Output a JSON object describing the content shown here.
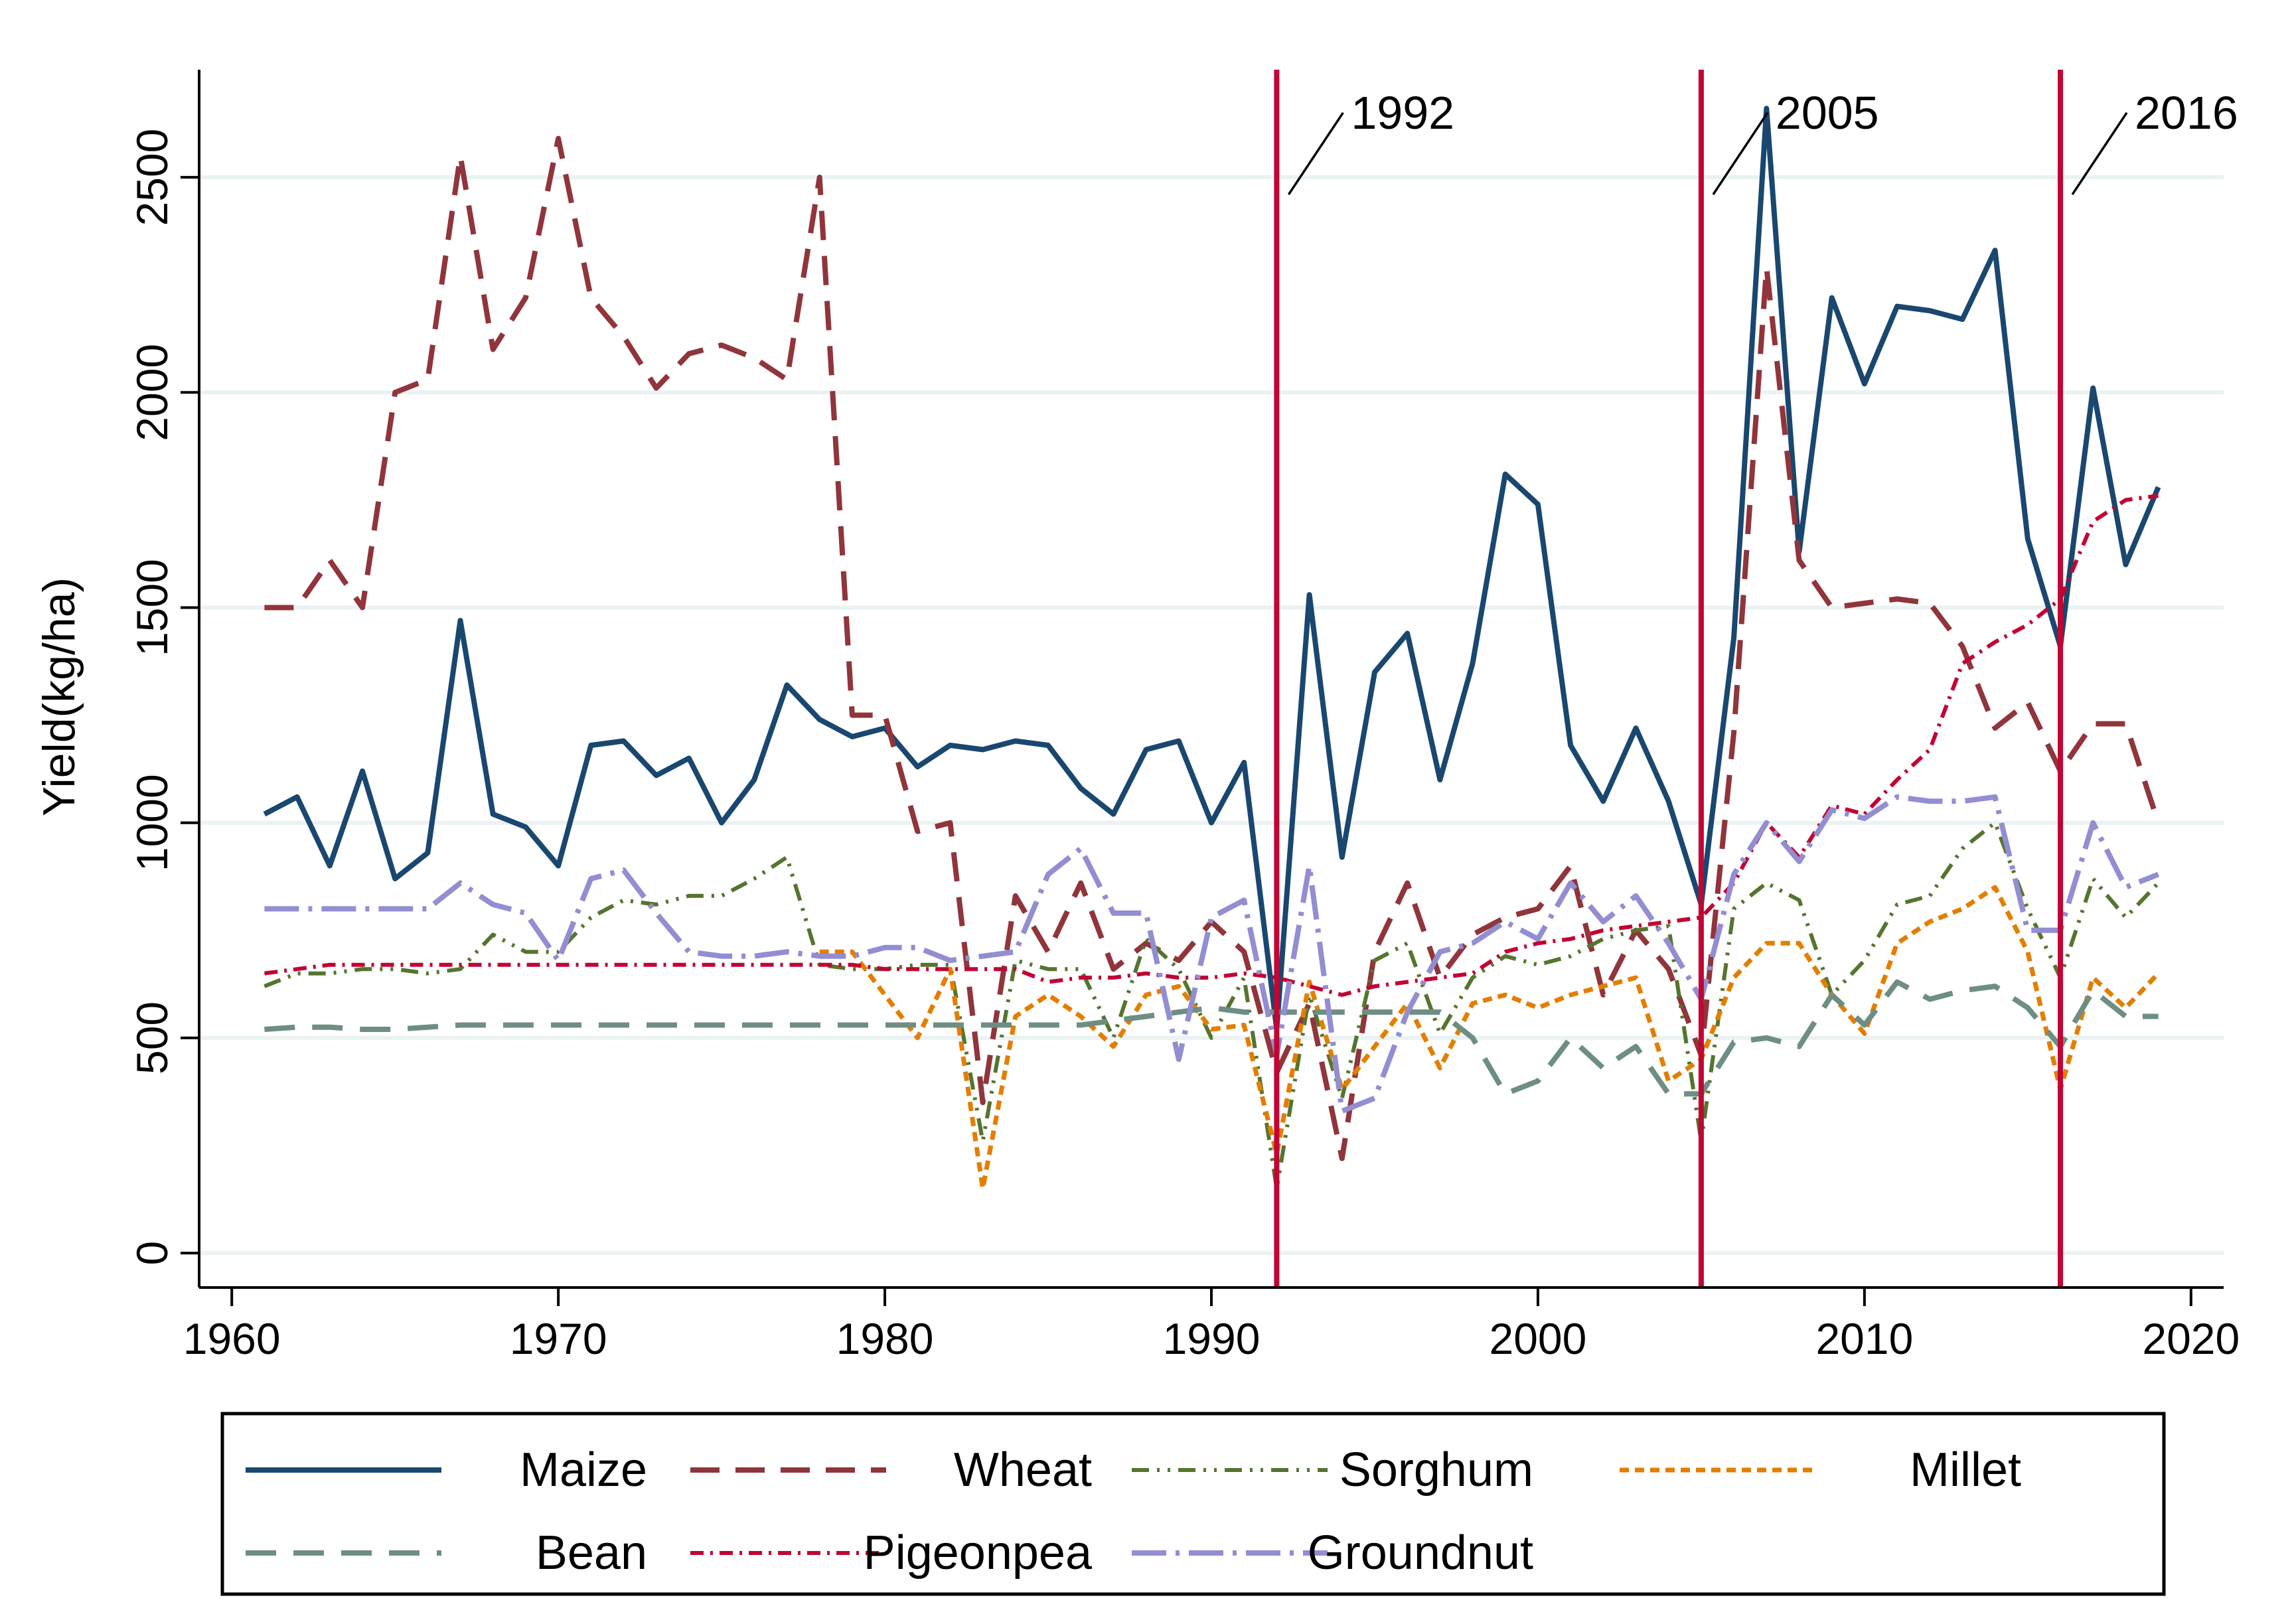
{
  "chart_data": {
    "type": "line",
    "title": "",
    "xlabel": "",
    "ylabel": "Yield(kg/ha)",
    "xlim": [
      1959,
      2021
    ],
    "ylim": [
      -80,
      2750
    ],
    "xticks": [
      1960,
      1970,
      1980,
      1990,
      2000,
      2010,
      2020
    ],
    "yticks": [
      0,
      500,
      1000,
      1500,
      2000,
      2500
    ],
    "grid": true,
    "legend_position": "bottom",
    "x": [
      1961,
      1962,
      1963,
      1964,
      1965,
      1966,
      1967,
      1968,
      1969,
      1970,
      1971,
      1972,
      1973,
      1974,
      1975,
      1976,
      1977,
      1978,
      1979,
      1980,
      1981,
      1982,
      1983,
      1984,
      1985,
      1986,
      1987,
      1988,
      1989,
      1990,
      1991,
      1992,
      1993,
      1994,
      1995,
      1996,
      1997,
      1998,
      1999,
      2000,
      2001,
      2002,
      2003,
      2004,
      2005,
      2006,
      2007,
      2008,
      2009,
      2010,
      2011,
      2012,
      2013,
      2014,
      2015,
      2016,
      2017,
      2018,
      2019
    ],
    "series": [
      {
        "name": "Maize",
        "color": "#1a476f",
        "dash": "",
        "width": 8,
        "values": [
          1020,
          1060,
          900,
          1120,
          870,
          930,
          1470,
          1020,
          990,
          900,
          1180,
          1190,
          1110,
          1150,
          1000,
          1100,
          1320,
          1240,
          1200,
          1220,
          1130,
          1180,
          1170,
          1190,
          1180,
          1080,
          1020,
          1170,
          1190,
          1000,
          1140,
          520,
          1530,
          920,
          1350,
          1440,
          1100,
          1370,
          1810,
          1740,
          1180,
          1050,
          1220,
          1050,
          810,
          1430,
          2660,
          1630,
          2220,
          2020,
          2200,
          2190,
          2170,
          2330,
          1660,
          1410,
          2010,
          1600,
          1780
        ]
      },
      {
        "name": "Wheat",
        "color": "#90353b",
        "dash": "44,24",
        "width": 8,
        "values": [
          1500,
          1500,
          1610,
          1500,
          2000,
          2030,
          2550,
          2100,
          2220,
          2590,
          2220,
          2130,
          2010,
          2090,
          2110,
          2080,
          2030,
          2500,
          1250,
          1250,
          980,
          1000,
          350,
          830,
          700,
          860,
          660,
          720,
          680,
          770,
          700,
          420,
          580,
          220,
          700,
          860,
          640,
          740,
          780,
          800,
          900,
          600,
          750,
          660,
          460,
          1210,
          2290,
          1610,
          1500,
          1510,
          1520,
          1510,
          1410,
          1220,
          1280,
          1120,
          1230,
          1230,
          1000
        ]
      },
      {
        "name": "Sorghum",
        "color": "#55752f",
        "dash": "26,12,4,12,4,12",
        "width": 6,
        "values": [
          620,
          650,
          650,
          660,
          660,
          650,
          660,
          740,
          700,
          700,
          780,
          820,
          810,
          830,
          830,
          870,
          920,
          670,
          660,
          660,
          670,
          670,
          260,
          680,
          660,
          660,
          500,
          730,
          660,
          500,
          640,
          150,
          600,
          360,
          680,
          720,
          510,
          640,
          690,
          670,
          690,
          730,
          750,
          760,
          260,
          800,
          860,
          820,
          600,
          680,
          810,
          830,
          940,
          1000,
          800,
          640,
          870,
          780,
          860
        ]
      },
      {
        "name": "Millet",
        "color": "#e37e00",
        "dash": "14,9",
        "width": 7,
        "values": [
          null,
          null,
          null,
          null,
          null,
          null,
          null,
          null,
          null,
          null,
          null,
          null,
          null,
          null,
          null,
          null,
          null,
          700,
          700,
          600,
          500,
          660,
          150,
          550,
          600,
          550,
          480,
          600,
          620,
          520,
          530,
          230,
          630,
          380,
          480,
          580,
          430,
          580,
          600,
          570,
          600,
          620,
          640,
          400,
          450,
          640,
          720,
          720,
          600,
          510,
          720,
          770,
          800,
          850,
          700,
          380,
          640,
          570,
          650
        ]
      },
      {
        "name": "Bean",
        "color": "#6e8e84",
        "dash": "46,26",
        "width": 8,
        "values": [
          520,
          525,
          525,
          520,
          520,
          525,
          530,
          530,
          530,
          530,
          530,
          530,
          530,
          530,
          530,
          530,
          530,
          530,
          530,
          530,
          530,
          530,
          530,
          530,
          530,
          530,
          540,
          550,
          560,
          570,
          560,
          560,
          560,
          560,
          560,
          560,
          560,
          500,
          370,
          400,
          500,
          430,
          480,
          370,
          370,
          490,
          500,
          480,
          600,
          530,
          630,
          590,
          610,
          620,
          570,
          480,
          610,
          550,
          550
        ]
      },
      {
        "name": "Pigeonpea",
        "color": "#c10534",
        "dash": "20,10,4,10",
        "width": 6,
        "values": [
          650,
          660,
          670,
          670,
          670,
          670,
          670,
          670,
          670,
          670,
          670,
          670,
          670,
          670,
          670,
          670,
          670,
          670,
          670,
          660,
          660,
          660,
          660,
          660,
          630,
          640,
          640,
          650,
          640,
          640,
          650,
          640,
          620,
          600,
          620,
          630,
          640,
          650,
          700,
          720,
          730,
          750,
          760,
          770,
          780,
          860,
          1000,
          920,
          1040,
          1020,
          1100,
          1170,
          1370,
          1420,
          1460,
          1520,
          1700,
          1750,
          1760
        ]
      },
      {
        "name": "Groundnut",
        "color": "#938dd2",
        "dash": "52,14,6,14",
        "width": 8,
        "values": [
          800,
          800,
          800,
          800,
          800,
          800,
          860,
          810,
          790,
          680,
          870,
          890,
          790,
          700,
          690,
          690,
          700,
          690,
          690,
          710,
          710,
          680,
          690,
          700,
          880,
          940,
          790,
          790,
          450,
          780,
          820,
          460,
          900,
          330,
          360,
          560,
          700,
          720,
          770,
          730,
          860,
          770,
          830,
          720,
          590,
          880,
          1000,
          910,
          1030,
          1010,
          1060,
          1050,
          1050,
          1060,
          750,
          750,
          1000,
          850,
          880
        ]
      }
    ],
    "reference_lines": [
      {
        "x": 1992,
        "label": "1992",
        "color": "#c10534"
      },
      {
        "x": 2005,
        "label": "2005",
        "color": "#c10534"
      },
      {
        "x": 2016,
        "label": "2016",
        "color": "#c10534"
      }
    ]
  },
  "legend_order": [
    0,
    1,
    2,
    3,
    4,
    5,
    6
  ]
}
